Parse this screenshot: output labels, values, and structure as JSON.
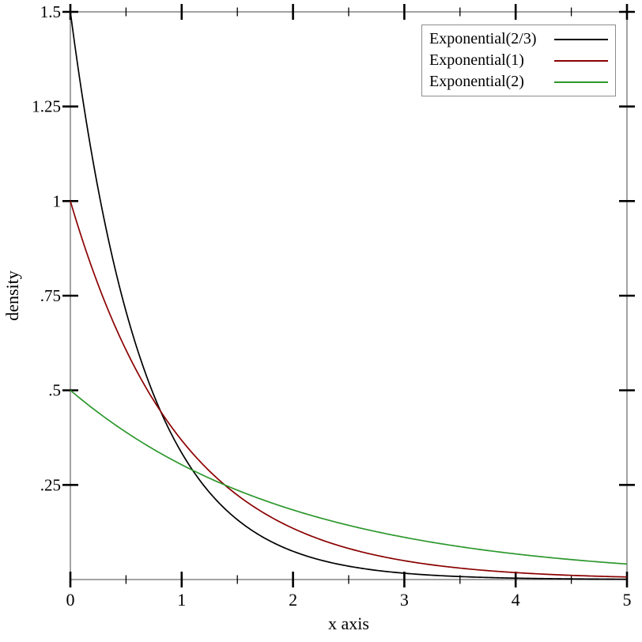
{
  "figure": {
    "background": "#ffffff",
    "frame_color": "#8c8c8c",
    "tick_color": "#000000"
  },
  "chart_data": {
    "type": "line",
    "title": "",
    "xlabel": "x axis",
    "ylabel": "density",
    "xlim": [
      0,
      5
    ],
    "ylim": [
      0,
      1.5
    ],
    "grid": false,
    "legend_position": "top-right",
    "x_major_ticks": [
      0,
      1,
      2,
      3,
      4,
      5
    ],
    "x_tick_labels": [
      "0",
      "1",
      "2",
      "3",
      "4",
      "5"
    ],
    "x_minor_ticks": [
      0.5,
      1.5,
      2.5,
      3.5,
      4.5
    ],
    "y_major_ticks": [
      0.25,
      0.5,
      0.75,
      1.0,
      1.25,
      1.5
    ],
    "y_tick_labels": [
      ".25",
      ".5",
      ".75",
      "1",
      "1.25",
      "1.5"
    ],
    "series": [
      {
        "name": "Exponential(2/3)",
        "color": "#000000",
        "mean": 0.6667,
        "rate": 1.5,
        "function": "f(x) = 1.5*exp(-1.5*x)",
        "x": [
          0,
          0.25,
          0.5,
          0.75,
          1,
          1.25,
          1.5,
          1.75,
          2,
          2.25,
          2.5,
          2.75,
          3,
          3.25,
          3.5,
          3.75,
          4,
          4.25,
          4.5,
          4.75,
          5
        ],
        "y": [
          1.5,
          1.0309,
          0.7086,
          0.487,
          0.3347,
          0.23,
          0.1581,
          0.1087,
          0.0747,
          0.0513,
          0.0353,
          0.0242,
          0.0167,
          0.0115,
          0.0079,
          0.0054,
          0.0037,
          0.0026,
          0.0018,
          0.0012,
          0.0008
        ]
      },
      {
        "name": "Exponential(1)",
        "color": "#8b0000",
        "mean": 1,
        "rate": 1,
        "function": "f(x) = exp(-x)",
        "x": [
          0,
          0.25,
          0.5,
          0.75,
          1,
          1.25,
          1.5,
          1.75,
          2,
          2.25,
          2.5,
          2.75,
          3,
          3.25,
          3.5,
          3.75,
          4,
          4.25,
          4.5,
          4.75,
          5
        ],
        "y": [
          1,
          0.7788,
          0.6065,
          0.4724,
          0.3679,
          0.2865,
          0.2231,
          0.1738,
          0.1353,
          0.1054,
          0.0821,
          0.0639,
          0.0498,
          0.0388,
          0.0302,
          0.0235,
          0.0183,
          0.0143,
          0.0111,
          0.0087,
          0.0067
        ]
      },
      {
        "name": "Exponential(2)",
        "color": "#2d982d",
        "mean": 2,
        "rate": 0.5,
        "function": "f(x) = 0.5*exp(-0.5*x)",
        "x": [
          0,
          0.25,
          0.5,
          0.75,
          1,
          1.25,
          1.5,
          1.75,
          2,
          2.25,
          2.5,
          2.75,
          3,
          3.25,
          3.5,
          3.75,
          4,
          4.25,
          4.5,
          4.75,
          5
        ],
        "y": [
          0.5,
          0.4412,
          0.3894,
          0.3436,
          0.3033,
          0.2676,
          0.2362,
          0.2084,
          0.1839,
          0.1623,
          0.1433,
          0.1264,
          0.1116,
          0.0984,
          0.0869,
          0.0767,
          0.0677,
          0.0597,
          0.0527,
          0.0465,
          0.041
        ]
      }
    ]
  }
}
